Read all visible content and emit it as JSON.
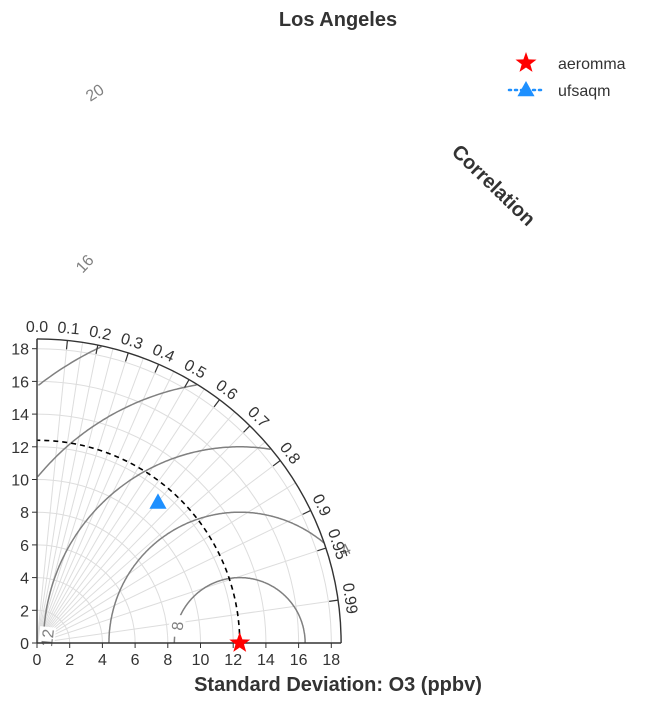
{
  "title": "Los Angeles",
  "chart_data": {
    "type": "scatter",
    "subtype": "taylor-diagram",
    "title": "Los Angeles",
    "xlabel": "Standard Deviation: O3 (ppbv)",
    "ylabel": "",
    "axis_label_correlation": "Correlation",
    "std_range": [
      0,
      18.6
    ],
    "x_ticks": [
      "0",
      "2",
      "4",
      "6",
      "8",
      "10",
      "12",
      "14",
      "16",
      "18"
    ],
    "y_ticks": [
      "0",
      "2",
      "4",
      "6",
      "8",
      "10",
      "12",
      "14",
      "16",
      "18"
    ],
    "correlation_ticks": [
      "0.0",
      "0.1",
      "0.2",
      "0.3",
      "0.4",
      "0.5",
      "0.6",
      "0.7",
      "0.8",
      "0.9",
      "0.95",
      "0.99"
    ],
    "reference_std": 12.4,
    "rms_contours": [
      "4",
      "8",
      "12",
      "16",
      "20"
    ],
    "grid": true,
    "legend_position": "top-right",
    "series": [
      {
        "name": "aeromma",
        "marker": "star",
        "color": "#ff0000",
        "x": 12.4,
        "y": 0.0
      },
      {
        "name": "ufsaqm",
        "marker": "triangle",
        "color": "#1e90ff",
        "line_style": "dotted",
        "x": 7.4,
        "y": 8.6
      }
    ]
  }
}
